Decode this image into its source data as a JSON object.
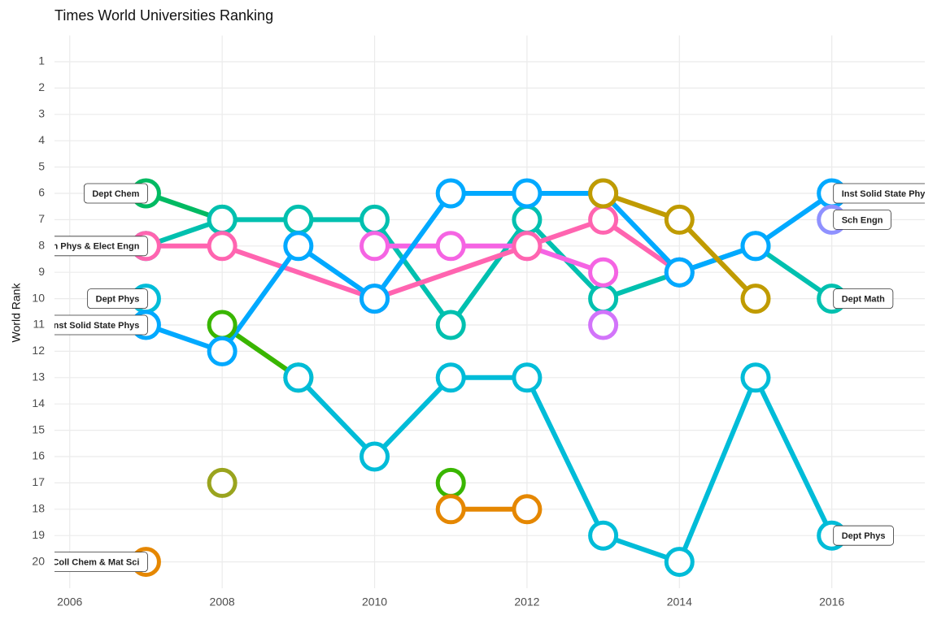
{
  "chart_data": {
    "type": "bump",
    "title": "Times World Universities Ranking",
    "y_label": "World Rank",
    "xlim": [
      2005.8,
      2017.22
    ],
    "xticks": [
      2006,
      2008,
      2010,
      2012,
      2014,
      2016
    ],
    "ylim": [
      21,
      0
    ],
    "yticks": [
      1,
      2,
      3,
      4,
      5,
      6,
      7,
      8,
      9,
      10,
      11,
      12,
      13,
      14,
      15,
      16,
      17,
      18,
      19,
      20
    ],
    "grid": true,
    "series": [
      {
        "color": "#00BA62",
        "x": [
          2007,
          2008
        ],
        "values": [
          6,
          7
        ],
        "start_label": "Dept Chem"
      },
      {
        "color": "#00C0AF",
        "x": [
          2007,
          2008,
          2009,
          2010,
          2011,
          2012,
          2013,
          2014,
          2015,
          2016
        ],
        "values": [
          8,
          7,
          7,
          7,
          11,
          7,
          10,
          9,
          8,
          10
        ],
        "end_label": "Dept Math"
      },
      {
        "color": "#F564E3",
        "x": [
          2010,
          2011,
          2012,
          2013
        ],
        "values": [
          8,
          8,
          8,
          9
        ]
      },
      {
        "color": "#FF64B0",
        "x": [
          2007,
          2008,
          2010,
          2012,
          2013,
          2014
        ],
        "values": [
          8,
          8,
          10,
          8,
          7,
          9
        ],
        "start_label": "h Phys & Elect Engn"
      },
      {
        "color": "#00BCD8",
        "x": [
          2007
        ],
        "values": [
          10
        ],
        "start_label": "Dept Phys"
      },
      {
        "color": "#39B600",
        "x": [
          2008,
          2009
        ],
        "values": [
          11,
          13
        ]
      },
      {
        "color": "#00BCD8",
        "x": [
          2009,
          2010,
          2011,
          2012,
          2013,
          2014,
          2015,
          2016
        ],
        "values": [
          13,
          16,
          13,
          13,
          19,
          20,
          13,
          19
        ],
        "end_label": "Dept Phys"
      },
      {
        "color": "#00A9FF",
        "x": [
          2007,
          2008,
          2009,
          2010,
          2011,
          2012,
          2013,
          2014,
          2015,
          2016
        ],
        "values": [
          11,
          12,
          8,
          10,
          6,
          6,
          6,
          9,
          8,
          6
        ],
        "start_label": "nst Solid State Phys",
        "end_label": "Inst Solid State Phy"
      },
      {
        "color": "#C09B00",
        "x": [
          2013,
          2014,
          2015
        ],
        "values": [
          6,
          7,
          10
        ]
      },
      {
        "color": "#9AA41E",
        "x": [
          2008
        ],
        "values": [
          17
        ]
      },
      {
        "color": "#39B600",
        "x": [
          2011
        ],
        "values": [
          17
        ]
      },
      {
        "color": "#E58700",
        "x": [
          2011,
          2012
        ],
        "values": [
          18,
          18
        ]
      },
      {
        "color": "#E58700",
        "x": [
          2007
        ],
        "values": [
          20
        ],
        "start_label": "Coll Chem & Mat Sci"
      },
      {
        "color": "#D274FA",
        "x": [
          2013
        ],
        "values": [
          11
        ]
      },
      {
        "color": "#8F91FF",
        "x": [
          2016
        ],
        "values": [
          7
        ],
        "end_label": "Sch Engn"
      }
    ]
  }
}
